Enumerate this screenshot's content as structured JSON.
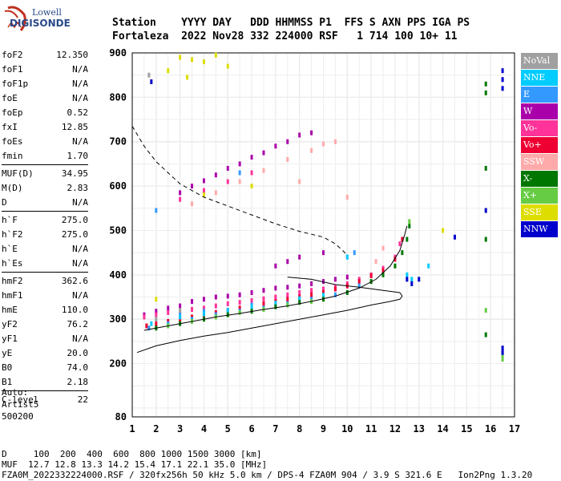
{
  "logo": {
    "line1": "Lowell",
    "line2": "DIGISONDE"
  },
  "header": {
    "row1": "Station    YYYY DAY   DDD HHMMSS P1  FFS S AXN PPS IGA PS",
    "row2": "Fortaleza  2022 Nov28 332 224000 RSF   1 714 100 10+ 11"
  },
  "params": [
    {
      "name": "foF2",
      "value": "12.350"
    },
    {
      "name": "foF1",
      "value": "N/A"
    },
    {
      "name": "foF1p",
      "value": "N/A"
    },
    {
      "name": "foE",
      "value": "N/A"
    },
    {
      "name": "foEp",
      "value": "0.52"
    },
    {
      "name": "fxI",
      "value": "12.85"
    },
    {
      "name": "foEs",
      "value": "N/A"
    },
    {
      "name": "fmin",
      "value": "1.70"
    },
    {
      "name": "MUF(D)",
      "value": "34.95"
    },
    {
      "name": "M(D)",
      "value": "2.83"
    },
    {
      "name": "D",
      "value": "N/A"
    },
    {
      "name": "h`F",
      "value": "275.0"
    },
    {
      "name": "h`F2",
      "value": "275.0"
    },
    {
      "name": "h`E",
      "value": "N/A"
    },
    {
      "name": "h`Es",
      "value": "N/A"
    },
    {
      "name": "hmF2",
      "value": "362.6"
    },
    {
      "name": "hmF1",
      "value": "N/A"
    },
    {
      "name": "hmE",
      "value": "110.0"
    },
    {
      "name": "yF2",
      "value": "76.2"
    },
    {
      "name": "yF1",
      "value": "N/A"
    },
    {
      "name": "yE",
      "value": "20.0"
    },
    {
      "name": "B0",
      "value": "74.0"
    },
    {
      "name": "B1",
      "value": "2.18"
    },
    {
      "name": "C-level",
      "value": "22"
    }
  ],
  "auto": {
    "line1": "Auto:",
    "line2": "Artist5",
    "line3": "500200"
  },
  "footer": {
    "row1": "D     100  200  400  600  800 1000 1500 3000 [km]",
    "row2": "MUF  12.7 12.8 13.3 14.2 15.4 17.1 22.1 35.0 [MHz]",
    "row3": "FZA0M_2022332224000.RSF / 320fx256h 50 kHz 5.0 km / DPS-4 FZA0M 904 / 3.9 S 321.6 E   Ion2Png 1.3.20"
  },
  "legend": [
    {
      "label": "NoVal",
      "color": "#a0a0a0"
    },
    {
      "label": "NNE",
      "color": "#00ccff"
    },
    {
      "label": "E",
      "color": "#3399ff"
    },
    {
      "label": "W",
      "color": "#aa00aa"
    },
    {
      "label": "Vo-",
      "color": "#ff3399"
    },
    {
      "label": "Vo+",
      "color": "#ee0033"
    },
    {
      "label": "SSW",
      "color": "#ffaaaa"
    },
    {
      "label": "X-",
      "color": "#007700"
    },
    {
      "label": "X+",
      "color": "#66cc44"
    },
    {
      "label": "SSE",
      "color": "#dddd00"
    },
    {
      "label": "NNW",
      "color": "#0000cc"
    }
  ],
  "chart_data": {
    "type": "scatter",
    "xlim": [
      1,
      17
    ],
    "ylim": [
      80,
      900
    ],
    "x_ticks": [
      1,
      2,
      3,
      4,
      5,
      6,
      7,
      8,
      9,
      10,
      11,
      12,
      13,
      14,
      15,
      16,
      17
    ],
    "y_ticks": [
      80,
      200,
      300,
      400,
      500,
      600,
      700,
      800,
      900
    ],
    "grid": true,
    "series": [
      {
        "name": "W",
        "points": [
          [
            1.5,
            310
          ],
          [
            2.0,
            318
          ],
          [
            2.5,
            325
          ],
          [
            3.0,
            330
          ],
          [
            3.5,
            340
          ],
          [
            4.0,
            345
          ],
          [
            4.5,
            350
          ],
          [
            5.0,
            352
          ],
          [
            5.5,
            355
          ],
          [
            6.0,
            360
          ],
          [
            6.5,
            365
          ],
          [
            7.0,
            370
          ],
          [
            7.5,
            372
          ],
          [
            8.0,
            375
          ],
          [
            8.5,
            380
          ],
          [
            9.0,
            385
          ],
          [
            9.5,
            390
          ],
          [
            10.0,
            395
          ],
          [
            3.0,
            585
          ],
          [
            3.5,
            600
          ],
          [
            4.0,
            612
          ],
          [
            4.5,
            625
          ],
          [
            5.0,
            640
          ],
          [
            5.5,
            650
          ],
          [
            6.0,
            665
          ],
          [
            6.5,
            675
          ],
          [
            7.0,
            690
          ],
          [
            7.5,
            700
          ],
          [
            8.0,
            715
          ],
          [
            8.5,
            720
          ],
          [
            7.0,
            420
          ],
          [
            7.5,
            430
          ],
          [
            8.0,
            440
          ],
          [
            9.0,
            450
          ]
        ]
      },
      {
        "name": "Vo-",
        "points": [
          [
            1.5,
            305
          ],
          [
            2.0,
            310
          ],
          [
            2.5,
            315
          ],
          [
            3.0,
            318
          ],
          [
            3.5,
            322
          ],
          [
            4.0,
            325
          ],
          [
            4.5,
            330
          ],
          [
            5.0,
            335
          ],
          [
            5.5,
            338
          ],
          [
            6.0,
            342
          ],
          [
            6.5,
            346
          ],
          [
            7.0,
            350
          ],
          [
            7.5,
            355
          ],
          [
            8.0,
            360
          ],
          [
            8.5,
            365
          ],
          [
            9.0,
            368
          ],
          [
            9.5,
            372
          ],
          [
            10.0,
            380
          ],
          [
            10.5,
            390
          ],
          [
            11.0,
            400
          ],
          [
            11.5,
            415
          ],
          [
            12.0,
            440
          ],
          [
            12.2,
            470
          ],
          [
            3.0,
            570
          ],
          [
            4.0,
            590
          ],
          [
            5.0,
            610
          ],
          [
            6.0,
            630
          ]
        ]
      },
      {
        "name": "Vo+",
        "points": [
          [
            1.6,
            285
          ],
          [
            2.0,
            290
          ],
          [
            2.5,
            295
          ],
          [
            3.0,
            300
          ],
          [
            3.5,
            305
          ],
          [
            4.0,
            310
          ],
          [
            4.5,
            315
          ],
          [
            5.0,
            320
          ],
          [
            5.5,
            325
          ],
          [
            6.0,
            330
          ],
          [
            6.5,
            335
          ],
          [
            7.0,
            340
          ],
          [
            7.5,
            345
          ],
          [
            8.0,
            350
          ],
          [
            8.5,
            355
          ],
          [
            9.0,
            360
          ],
          [
            9.5,
            368
          ],
          [
            10.0,
            375
          ],
          [
            10.5,
            385
          ],
          [
            11.0,
            398
          ],
          [
            11.5,
            410
          ],
          [
            12.0,
            435
          ],
          [
            12.3,
            480
          ]
        ]
      },
      {
        "name": "E",
        "points": [
          [
            1.7,
            280
          ],
          [
            2.5,
            290
          ],
          [
            3.5,
            300
          ],
          [
            4.5,
            310
          ],
          [
            5.5,
            318
          ],
          [
            6.5,
            325
          ],
          [
            7.5,
            335
          ],
          [
            8.5,
            345
          ],
          [
            9.5,
            355
          ],
          [
            10.5,
            375
          ],
          [
            10.0,
            440
          ],
          [
            10.3,
            450
          ],
          [
            2.0,
            545
          ],
          [
            5.5,
            630
          ],
          [
            3.0,
            310
          ],
          [
            4.0,
            318
          ],
          [
            6.0,
            332
          ]
        ]
      },
      {
        "name": "NNE",
        "points": [
          [
            1.8,
            290
          ],
          [
            3.0,
            305
          ],
          [
            4.0,
            312
          ],
          [
            5.0,
            320
          ],
          [
            6.0,
            328
          ],
          [
            7.0,
            336
          ],
          [
            8.0,
            346
          ],
          [
            9.0,
            354
          ],
          [
            10.0,
            440
          ],
          [
            12.5,
            400
          ],
          [
            12.7,
            390
          ],
          [
            13.4,
            420
          ]
        ]
      },
      {
        "name": "SSW",
        "points": [
          [
            3.5,
            560
          ],
          [
            4.5,
            585
          ],
          [
            5.5,
            610
          ],
          [
            6.5,
            635
          ],
          [
            7.5,
            660
          ],
          [
            8.5,
            680
          ],
          [
            9.0,
            695
          ],
          [
            9.5,
            700
          ],
          [
            10.0,
            575
          ],
          [
            8.0,
            610
          ],
          [
            11.2,
            430
          ],
          [
            11.5,
            460
          ]
        ]
      },
      {
        "name": "X-",
        "points": [
          [
            2.0,
            280
          ],
          [
            3.0,
            290
          ],
          [
            4.0,
            300
          ],
          [
            5.0,
            310
          ],
          [
            6.0,
            318
          ],
          [
            7.0,
            328
          ],
          [
            8.0,
            338
          ],
          [
            9.0,
            345
          ],
          [
            10.0,
            360
          ],
          [
            11.0,
            385
          ],
          [
            11.5,
            400
          ],
          [
            12.0,
            420
          ],
          [
            12.3,
            450
          ],
          [
            12.5,
            480
          ],
          [
            12.6,
            510
          ],
          [
            15.8,
            810
          ],
          [
            15.8,
            830
          ],
          [
            15.8,
            480
          ],
          [
            15.8,
            640
          ],
          [
            15.8,
            265
          ]
        ]
      },
      {
        "name": "X+",
        "points": [
          [
            2.5,
            285
          ],
          [
            3.5,
            295
          ],
          [
            4.5,
            305
          ],
          [
            5.5,
            315
          ],
          [
            6.5,
            322
          ],
          [
            7.5,
            332
          ],
          [
            8.5,
            340
          ],
          [
            12.6,
            520
          ],
          [
            15.8,
            320
          ],
          [
            16.5,
            210
          ],
          [
            16.5,
            220
          ]
        ]
      },
      {
        "name": "SSE",
        "points": [
          [
            3.0,
            890
          ],
          [
            3.5,
            885
          ],
          [
            4.0,
            880
          ],
          [
            4.5,
            895
          ],
          [
            5.0,
            870
          ],
          [
            3.3,
            845
          ],
          [
            2.5,
            860
          ],
          [
            14.0,
            500
          ],
          [
            6.0,
            600
          ],
          [
            4.0,
            580
          ],
          [
            2.0,
            345
          ]
        ]
      },
      {
        "name": "NNW",
        "points": [
          [
            16.5,
            860
          ],
          [
            16.5,
            840
          ],
          [
            16.5,
            820
          ],
          [
            16.5,
            235
          ],
          [
            16.5,
            225
          ],
          [
            15.8,
            545
          ],
          [
            13.0,
            390
          ],
          [
            12.5,
            390
          ],
          [
            14.5,
            485
          ],
          [
            12.7,
            380
          ],
          [
            1.8,
            835
          ]
        ]
      },
      {
        "name": "NoVal",
        "points": [
          [
            1.7,
            850
          ],
          [
            2.0,
            300
          ],
          [
            3.0,
            320
          ]
        ]
      }
    ],
    "curves": [
      {
        "name": "profile",
        "style": "solid",
        "points": [
          [
            1.2,
            225
          ],
          [
            2.0,
            240
          ],
          [
            3.0,
            252
          ],
          [
            4.0,
            262
          ],
          [
            5.0,
            270
          ],
          [
            6.0,
            280
          ],
          [
            7.0,
            290
          ],
          [
            8.0,
            300
          ],
          [
            9.0,
            310
          ],
          [
            10.0,
            320
          ],
          [
            11.0,
            332
          ],
          [
            11.8,
            340
          ],
          [
            12.2,
            345
          ],
          [
            12.3,
            352
          ],
          [
            12.2,
            360
          ],
          [
            11.5,
            365
          ],
          [
            10.5,
            372
          ],
          [
            9.5,
            378
          ],
          [
            8.5,
            390
          ],
          [
            7.5,
            395
          ]
        ]
      },
      {
        "name": "trace",
        "style": "solid",
        "points": [
          [
            1.5,
            275
          ],
          [
            2.5,
            285
          ],
          [
            3.5,
            295
          ],
          [
            4.5,
            305
          ],
          [
            5.5,
            313
          ],
          [
            6.5,
            322
          ],
          [
            7.5,
            330
          ],
          [
            8.5,
            340
          ],
          [
            9.5,
            352
          ],
          [
            10.5,
            370
          ],
          [
            11.2,
            390
          ],
          [
            11.8,
            420
          ],
          [
            12.2,
            455
          ],
          [
            12.4,
            490
          ],
          [
            12.5,
            510
          ]
        ]
      },
      {
        "name": "MUF",
        "style": "dashed",
        "points": [
          [
            1.0,
            735
          ],
          [
            1.5,
            690
          ],
          [
            2.0,
            655
          ],
          [
            2.5,
            630
          ],
          [
            3.0,
            605
          ],
          [
            3.5,
            590
          ],
          [
            4.0,
            575
          ],
          [
            5.0,
            555
          ],
          [
            6.0,
            535
          ],
          [
            7.0,
            515
          ],
          [
            8.0,
            498
          ],
          [
            9.0,
            485
          ],
          [
            9.5,
            470
          ],
          [
            10.0,
            445
          ]
        ]
      }
    ]
  }
}
